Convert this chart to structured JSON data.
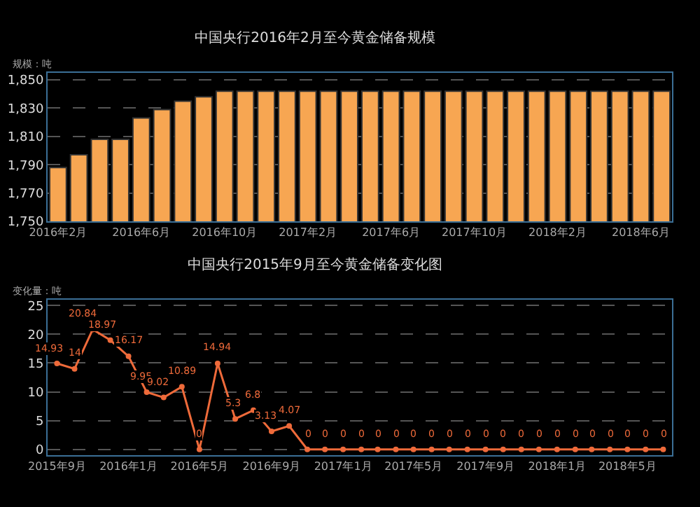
{
  "chart_data": [
    {
      "type": "bar",
      "title": "中国央行2016年2月至今黄金储备规模",
      "ylabel": "规模：吨",
      "categories": [
        "2016年2月",
        null,
        null,
        null,
        "2016年6月",
        null,
        null,
        null,
        "2016年10月",
        null,
        null,
        null,
        "2017年2月",
        null,
        null,
        null,
        "2017年6月",
        null,
        null,
        null,
        "2017年10月",
        null,
        null,
        null,
        "2018年2月",
        null,
        null,
        null,
        "2018年6月",
        null
      ],
      "values": [
        1788,
        1797,
        1808,
        1808,
        1823,
        1829,
        1835,
        1838,
        1842,
        1842,
        1842,
        1842,
        1842,
        1842,
        1842,
        1842,
        1842,
        1842,
        1842,
        1842,
        1842,
        1842,
        1842,
        1842,
        1842,
        1842,
        1842,
        1842,
        1842,
        1842
      ],
      "color": "#f7a652",
      "ylim": [
        1750,
        1855
      ],
      "yticks": [
        {
          "value": 1750,
          "label": "1,750"
        },
        {
          "value": 1770,
          "label": "1,770"
        },
        {
          "value": 1790,
          "label": "1,790"
        },
        {
          "value": 1810,
          "label": "1,810"
        },
        {
          "value": 1830,
          "label": "1,830"
        },
        {
          "value": 1850,
          "label": "1,850"
        }
      ],
      "grid": "y",
      "legend": false
    },
    {
      "type": "line",
      "title": "中国央行2015年9月至今黄金储备变化图",
      "ylabel": "变化量：吨",
      "x": [
        "2015-09",
        "2015-10",
        "2015-11",
        "2015-12",
        "2016-01",
        "2016-02",
        "2016-03",
        "2016-04",
        "2016-05",
        "2016-06",
        "2016-07",
        "2016-08",
        "2016-09",
        "2016-10",
        "2016-11",
        "2016-12",
        "2017-01",
        "2017-02",
        "2017-03",
        "2017-04",
        "2017-05",
        "2017-06",
        "2017-07",
        "2017-08",
        "2017-09",
        "2017-10",
        "2017-11",
        "2017-12",
        "2018-01",
        "2018-02",
        "2018-03",
        "2018-04",
        "2018-05",
        "2018-06",
        "2018-07"
      ],
      "values": [
        14.93,
        14,
        20.84,
        18.97,
        16.17,
        9.95,
        9.02,
        10.89,
        0,
        14.94,
        5.3,
        6.8,
        3.13,
        4.07,
        0,
        0,
        0,
        0,
        0,
        0,
        0,
        0,
        0,
        0,
        0,
        0,
        0,
        0,
        0,
        0,
        0,
        0,
        0,
        0,
        0
      ],
      "color": "#ee6a3a",
      "data_labels": true,
      "marker": "circle",
      "line_style": "solid",
      "xlim": [
        "2015-08-16",
        "2018-07-16"
      ],
      "xticks": [
        {
          "value": "2015-09",
          "label": "2015年9月"
        },
        {
          "value": "2016-01",
          "label": "2016年1月"
        },
        {
          "value": "2016-05",
          "label": "2016年5月"
        },
        {
          "value": "2016-09",
          "label": "2016年9月"
        },
        {
          "value": "2017-01",
          "label": "2017年1月"
        },
        {
          "value": "2017-05",
          "label": "2017年5月"
        },
        {
          "value": "2017-09",
          "label": "2017年9月"
        },
        {
          "value": "2018-01",
          "label": "2018年1月"
        },
        {
          "value": "2018-05",
          "label": "2018年5月"
        }
      ],
      "ylim": [
        -1,
        26
      ],
      "yticks": [
        0,
        5,
        10,
        15,
        20,
        25
      ],
      "grid": "y",
      "legend": false
    }
  ]
}
